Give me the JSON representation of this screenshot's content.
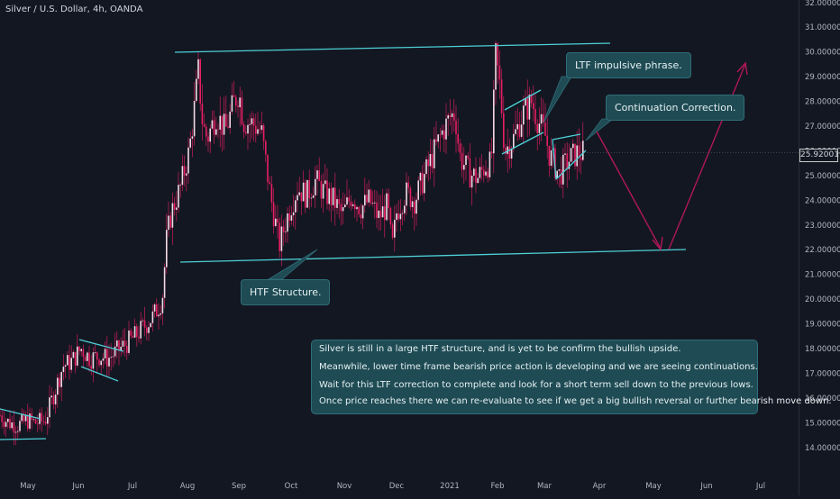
{
  "symbol_title": "Silver / U.S. Dollar, 4h, OANDA",
  "current_price_label": "25.92001",
  "colors": {
    "background": "#131722",
    "candle": "#e91e63",
    "trendline": "#4dd0d6",
    "arrow": "#b0175a",
    "note_bg": "#1f4b54"
  },
  "annotations": {
    "ltf": "LTF impulsive phrase.",
    "continuation": "Continuation Correction.",
    "htf": "HTF Structure."
  },
  "text_box": {
    "lines": [
      "Silver is still in a large HTF structure, and is yet to be confirm the bullish upside.",
      "Meanwhile, lower time frame bearish price action is developing and we are seeing continuations.",
      "Wait for this LTF correction to complete and look for a short term sell down to the previous lows.",
      "Once price reaches there we can re-evaluate to see if we get a big bullish reversal or further bearish move down."
    ]
  },
  "chart_data": {
    "type": "line",
    "title": "Silver / U.S. Dollar, 4h, OANDA",
    "y_axis": {
      "ticks": [
        "14.00000",
        "15.00000",
        "16.00000",
        "17.00000",
        "18.00000",
        "19.00000",
        "20.00000",
        "21.00000",
        "22.00000",
        "23.00000",
        "24.00000",
        "25.00000",
        "26.00000",
        "27.00000",
        "28.00000",
        "29.00000",
        "30.00000",
        "31.00000",
        "32.00000"
      ],
      "ylim": [
        13.3,
        32.1
      ]
    },
    "x_axis": {
      "ticks": [
        "May",
        "Jun",
        "Jul",
        "Aug",
        "Sep",
        "Oct",
        "Nov",
        "Dec",
        "2021",
        "Feb",
        "Mar",
        "Apr",
        "May",
        "Jun",
        "Jul"
      ]
    },
    "series": [
      {
        "values": [
          [
            0,
            15.3
          ],
          [
            10,
            15.0
          ],
          [
            20,
            14.9
          ],
          [
            30,
            15.1
          ],
          [
            40,
            15.0
          ],
          [
            50,
            15.1
          ],
          [
            60,
            16.2
          ],
          [
            70,
            17.3
          ],
          [
            80,
            17.5
          ],
          [
            90,
            18.0
          ],
          [
            100,
            17.6
          ],
          [
            110,
            17.7
          ],
          [
            120,
            17.6
          ],
          [
            130,
            17.9
          ],
          [
            140,
            18.2
          ],
          [
            150,
            18.5
          ],
          [
            160,
            18.9
          ],
          [
            170,
            19.3
          ],
          [
            180,
            20.0
          ],
          [
            185,
            22.5
          ],
          [
            190,
            23.5
          ],
          [
            200,
            24.5
          ],
          [
            210,
            26.0
          ],
          [
            215,
            27.5
          ],
          [
            220,
            29.2
          ],
          [
            225,
            27.0
          ],
          [
            230,
            26.5
          ],
          [
            240,
            27.5
          ],
          [
            250,
            26.8
          ],
          [
            260,
            28.0
          ],
          [
            265,
            28.4
          ],
          [
            270,
            27.2
          ],
          [
            280,
            27.1
          ],
          [
            290,
            26.8
          ],
          [
            300,
            24.2
          ],
          [
            310,
            22.2
          ],
          [
            320,
            23.5
          ],
          [
            330,
            24.5
          ],
          [
            340,
            24.2
          ],
          [
            350,
            24.8
          ],
          [
            360,
            24.3
          ],
          [
            370,
            24.0
          ],
          [
            380,
            23.4
          ],
          [
            390,
            24.2
          ],
          [
            400,
            23.7
          ],
          [
            410,
            24.0
          ],
          [
            420,
            23.3
          ],
          [
            430,
            23.8
          ],
          [
            435,
            22.0
          ],
          [
            440,
            23.5
          ],
          [
            450,
            24.3
          ],
          [
            460,
            24.0
          ],
          [
            470,
            24.9
          ],
          [
            480,
            25.8
          ],
          [
            490,
            26.7
          ],
          [
            500,
            27.4
          ],
          [
            505,
            27.5
          ],
          [
            510,
            25.8
          ],
          [
            520,
            25.1
          ],
          [
            530,
            24.9
          ],
          [
            540,
            25.5
          ],
          [
            545,
            25.4
          ],
          [
            550,
            29.8
          ],
          [
            555,
            28.5
          ],
          [
            560,
            26.0
          ],
          [
            570,
            26.5
          ],
          [
            580,
            27.5
          ],
          [
            590,
            28.0
          ],
          [
            595,
            27.4
          ],
          [
            600,
            27.0
          ],
          [
            605,
            26.6
          ],
          [
            610,
            25.8
          ],
          [
            615,
            25.5
          ],
          [
            620,
            25.0
          ],
          [
            630,
            25.6
          ],
          [
            640,
            25.9
          ],
          [
            648,
            25.92
          ]
        ]
      }
    ],
    "trendlines": [
      "upper-channel",
      "lower-channel",
      "ltf-channel",
      "continuation-flag",
      "jun-channel",
      "may-channel"
    ],
    "projection": [
      "down to previous lows",
      "then bullish reversal up"
    ]
  }
}
